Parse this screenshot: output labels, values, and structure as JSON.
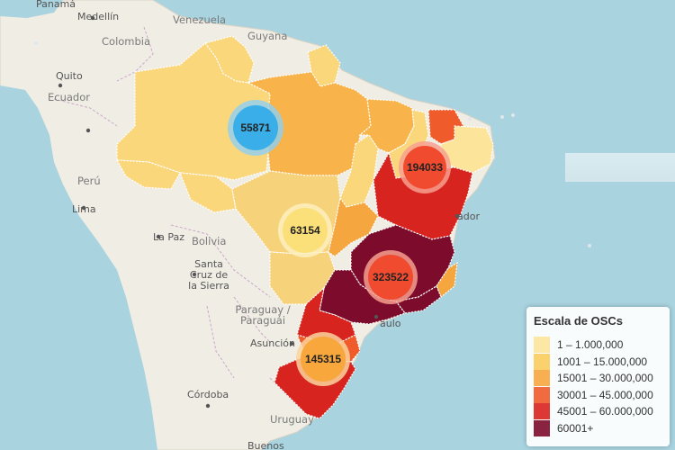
{
  "map": {
    "labels": {
      "panama": "Panamá",
      "medellin": "Medellín",
      "venezuela": "Venezuela",
      "colombia": "Colombia",
      "guyana": "Guyana",
      "quito": "Quito",
      "ecuador": "Ecuador",
      "peru": "Perú",
      "lima": "Lima",
      "la_paz": "La Paz",
      "bolivia": "Bolivia",
      "santa_cruz": "Santa\nCruz de\nla Sierra",
      "salvador": "ador",
      "paraguay": "Paraguay /\nParaguái",
      "asuncion": "Asunción",
      "sao_paulo": "aulo",
      "cordoba": "Córdoba",
      "uruguay": "Uruguay",
      "buenos": "Buenos"
    },
    "clusters": [
      {
        "id": "north",
        "count": "55871",
        "color": "#3aaee8",
        "ring": "#8fd0f2"
      },
      {
        "id": "northeast",
        "count": "194033",
        "color": "#f04b2f",
        "ring": "#f7a08f"
      },
      {
        "id": "centerwest",
        "count": "63154",
        "color": "#fbe07a",
        "ring": "#fdf0bf"
      },
      {
        "id": "southeast",
        "count": "323522",
        "color": "#f04b2f",
        "ring": "#f7a08f"
      },
      {
        "id": "south",
        "count": "145315",
        "color": "#f7a73c",
        "ring": "#fbd39c"
      }
    ]
  },
  "legend": {
    "title": "Escala de OSCs",
    "items": [
      {
        "label": "1 – 1.000,000",
        "color": "#fde49b"
      },
      {
        "label": "1001 – 15.000,000",
        "color": "#fbcc5e"
      },
      {
        "label": "15001 – 30.000,000",
        "color": "#f6a63e"
      },
      {
        "label": "30001 – 45.000,000",
        "color": "#ef5b2b"
      },
      {
        "label": "45001 – 60.000,000",
        "color": "#d8241e"
      },
      {
        "label": "60001+",
        "color": "#7d0b2b"
      }
    ]
  }
}
